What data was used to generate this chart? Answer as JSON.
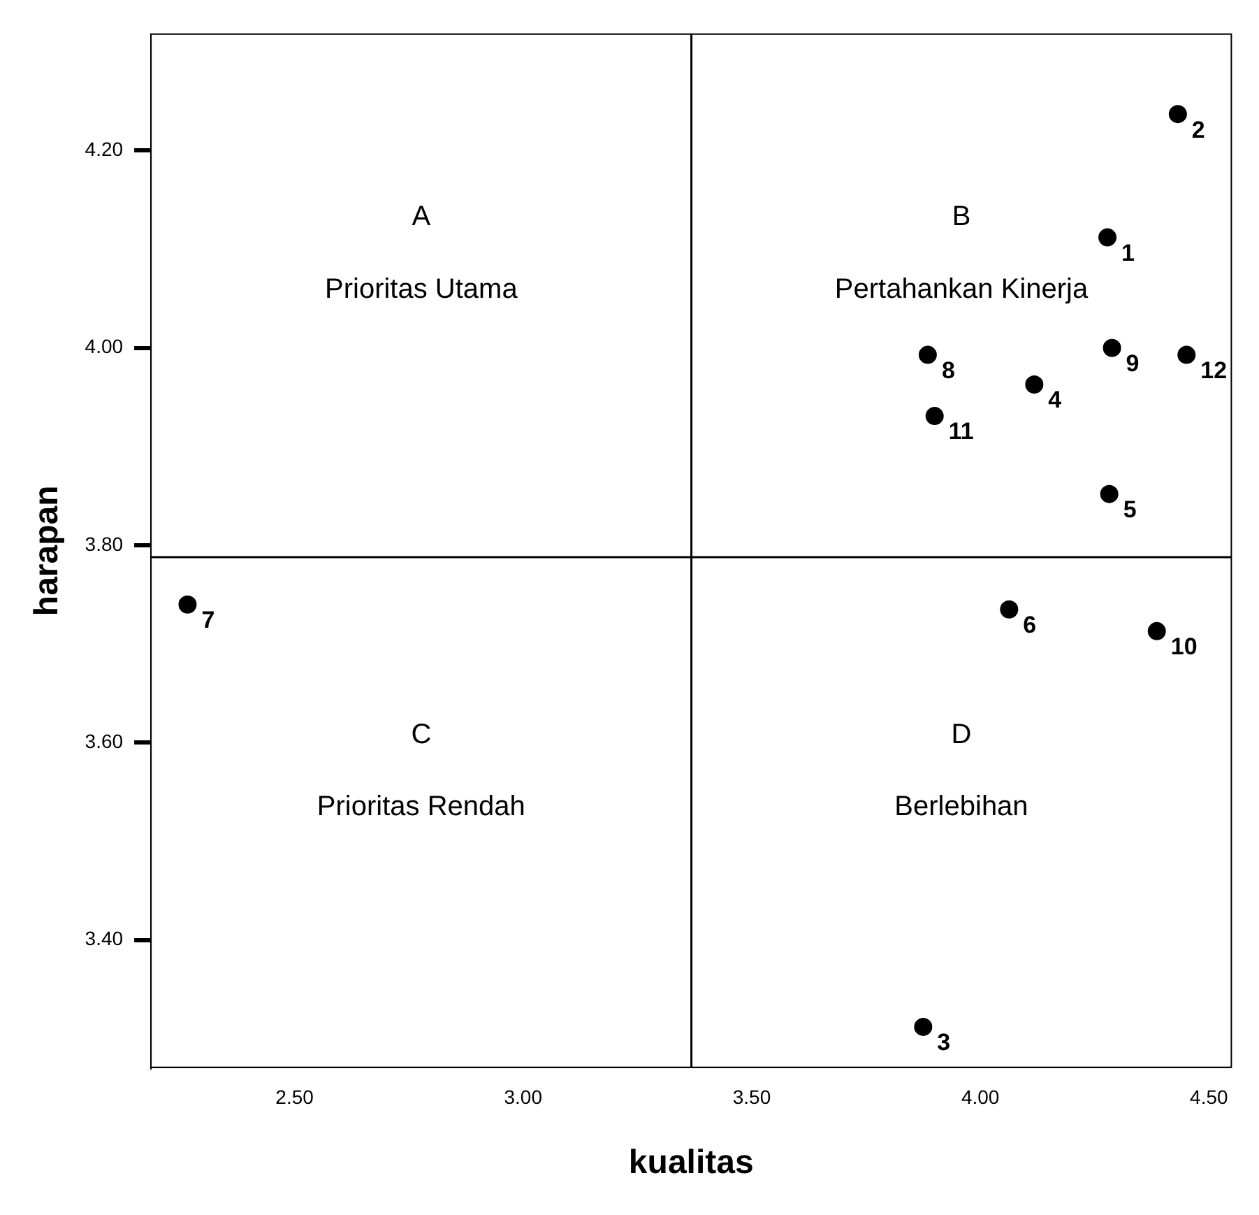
{
  "chart_data": {
    "type": "scatter",
    "xlabel": "kualitas",
    "ylabel": "harapan",
    "x": [
      4.278,
      4.432,
      3.875,
      4.118,
      4.282,
      4.063,
      2.266,
      3.885,
      4.288,
      4.386,
      3.9,
      4.451
    ],
    "values": [
      4.112,
      4.237,
      3.312,
      3.963,
      3.852,
      3.735,
      3.74,
      3.993,
      4.0,
      3.713,
      3.931,
      3.993
    ],
    "color": "#000000",
    "marker": "circle",
    "grid": false,
    "legend": false,
    "xlim": [
      2.186,
      4.549
    ],
    "ylim": [
      3.271,
      4.318
    ],
    "xticks": [
      {
        "value": 2.5,
        "label": "2.50"
      },
      {
        "value": 3,
        "label": "3.00"
      },
      {
        "value": 3.5,
        "label": "3.50"
      },
      {
        "value": 4,
        "label": "4.00"
      },
      {
        "value": 4.5,
        "label": "4.50"
      }
    ],
    "yticks": [
      {
        "value": 3.4,
        "label": "3.40"
      },
      {
        "value": 3.6,
        "label": "3.60"
      },
      {
        "value": 3.8,
        "label": "3.80"
      },
      {
        "value": 4,
        "label": "4.00"
      },
      {
        "value": 4.2,
        "label": "4.20"
      }
    ],
    "ref_lines": [
      {
        "axis": "x",
        "value": 3.368,
        "color": "#000000"
      },
      {
        "axis": "y",
        "value": 3.788,
        "color": "#000000"
      }
    ],
    "annotations": [
      "A",
      "Prioritas Utama",
      "B",
      "Pertahankan Kinerja",
      "C",
      "Prioritas Rendah",
      "D",
      "Berlebihan",
      {
        "text": "1",
        "x": 4.278,
        "y": 4.112
      },
      {
        "text": "2",
        "x": 4.432,
        "y": 4.237
      },
      {
        "text": "3",
        "x": 3.875,
        "y": 3.312
      },
      {
        "text": "4",
        "x": 4.118,
        "y": 3.963
      },
      {
        "text": "5",
        "x": 4.282,
        "y": 3.852
      },
      {
        "text": "6",
        "x": 4.063,
        "y": 3.735
      },
      {
        "text": "7",
        "x": 2.266,
        "y": 3.74
      },
      {
        "text": "8",
        "x": 3.885,
        "y": 3.993
      },
      {
        "text": "9",
        "x": 4.288,
        "y": 4.0
      },
      {
        "text": "10",
        "x": 4.386,
        "y": 3.713
      },
      {
        "text": "11",
        "x": 3.9,
        "y": 3.931
      },
      {
        "text": "12",
        "x": 4.451,
        "y": 3.993
      }
    ]
  }
}
